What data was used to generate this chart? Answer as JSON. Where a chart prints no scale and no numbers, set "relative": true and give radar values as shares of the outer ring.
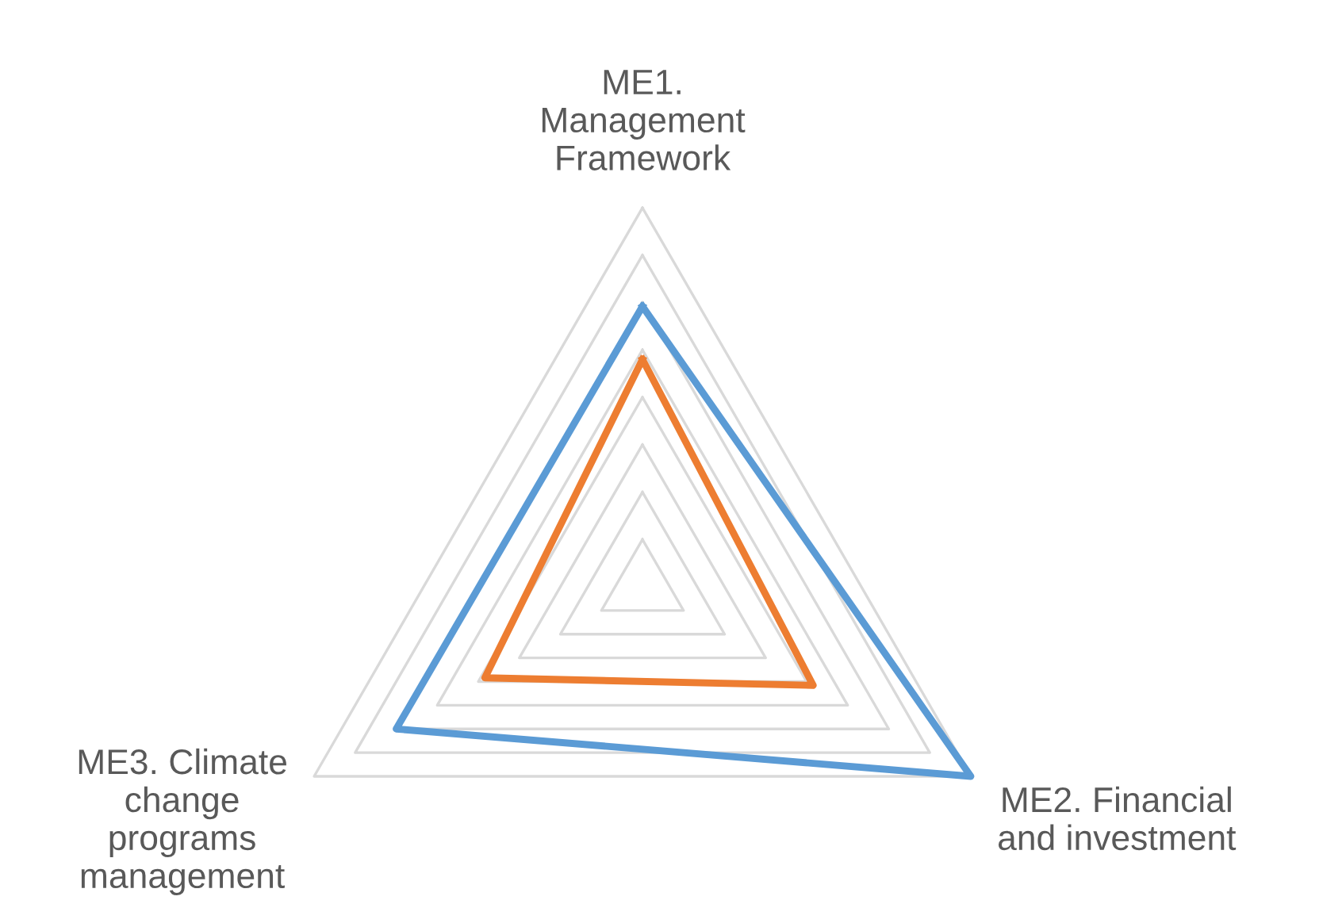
{
  "chart_data": {
    "type": "radar",
    "relative": true,
    "grid": true,
    "categories": [
      "ME1.\nManagement\nFramework",
      "ME2. Financial\nand investment",
      "ME3. Climate\nchange\nprograms\nmanagement"
    ],
    "series": [
      {
        "color": "#5b9bd5",
        "values": [
          0.74,
          1.0,
          0.75
        ]
      },
      {
        "color": "#ed7d31",
        "values": [
          0.6,
          0.52,
          0.48
        ]
      }
    ]
  }
}
